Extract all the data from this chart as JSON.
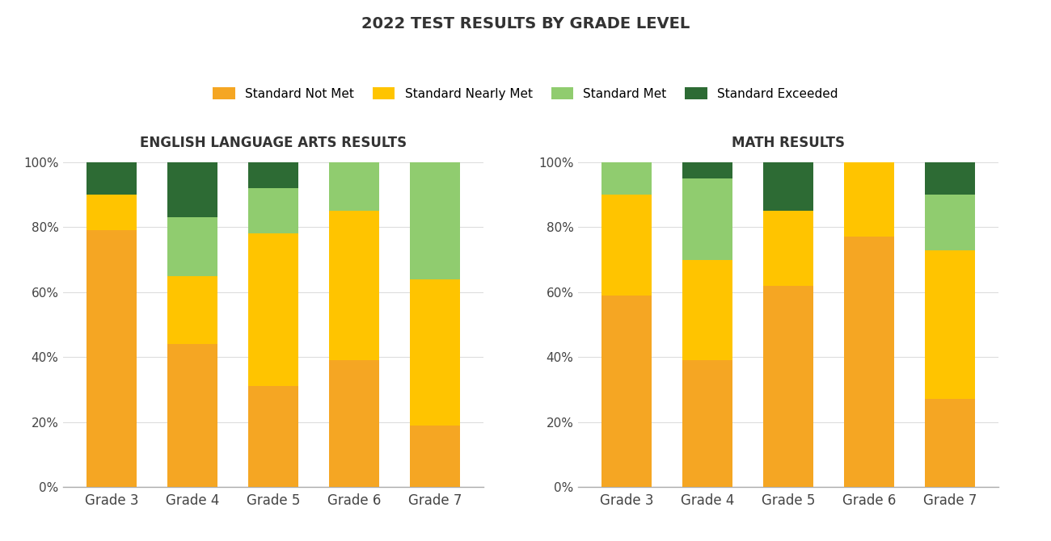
{
  "title": "2022 TEST RESULTS BY GRADE LEVEL",
  "ela_title": "ENGLISH LANGUAGE ARTS RESULTS",
  "math_title": "MATH RESULTS",
  "grades": [
    "Grade 3",
    "Grade 4",
    "Grade 5",
    "Grade 6",
    "Grade 7"
  ],
  "categories": [
    "Standard Not Met",
    "Standard Nearly Met",
    "Standard Met",
    "Standard Exceeded"
  ],
  "colors": [
    "#F5A623",
    "#FFC400",
    "#90CC6F",
    "#2D6B34"
  ],
  "ela_data": {
    "not_met": [
      79,
      44,
      31,
      39,
      19
    ],
    "nearly_met": [
      11,
      21,
      47,
      46,
      45
    ],
    "met": [
      0,
      18,
      14,
      15,
      36
    ],
    "exceeded": [
      10,
      17,
      8,
      0,
      0
    ]
  },
  "math_data": {
    "not_met": [
      59,
      39,
      62,
      77,
      27
    ],
    "nearly_met": [
      31,
      31,
      23,
      23,
      46
    ],
    "met": [
      10,
      25,
      0,
      0,
      17
    ],
    "exceeded": [
      0,
      5,
      15,
      0,
      10
    ]
  },
  "background_color": "#FFFFFF",
  "ylabel_ticks": [
    "0%",
    "20%",
    "40%",
    "60%",
    "80%",
    "100%"
  ],
  "ylabel_vals": [
    0,
    20,
    40,
    60,
    80,
    100
  ]
}
